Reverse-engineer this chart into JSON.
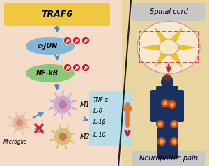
{
  "bg_left": "#f5dcc8",
  "bg_right": "#e8d5a0",
  "traf6_box_color": "#f0c840",
  "traf6_text": "TRAF6",
  "cjun_color": "#80b8d8",
  "cjun_text": "c-JUN",
  "nfkb_color": "#88c878",
  "nfkb_text": "NF-kB",
  "arrow_color": "#4488cc",
  "phospho_color": "#dd1111",
  "m1_color": "#c8a8d8",
  "m1_center_color": "#c87890",
  "m2_color": "#d8c070",
  "m2_center_color": "#c87860",
  "microglia_color": "#e8b8a0",
  "microglia_center_color": "#d89080",
  "cytokine_box_color": "#b8dce8",
  "up_arrow_color": "#e07830",
  "down_arrow_color": "#cc2222",
  "spinal_cord_label": "Spinal cord",
  "neuropathic_pain_label": "Neuropathic pain",
  "microglia_label": "Microglia",
  "m1_label": "M1",
  "m2_label": "M2",
  "divider_color": "#222222",
  "red_cross_color": "#dd2222",
  "cytokines": [
    "TNF-α",
    "IL-6",
    "IL-1β",
    "IL-10"
  ],
  "spinal_yellow": "#f0c020",
  "spinal_outline": "#cc8888",
  "body_color": "#1a3060",
  "pain_color": "#ff5500",
  "label_bg": "#c8c8c8"
}
